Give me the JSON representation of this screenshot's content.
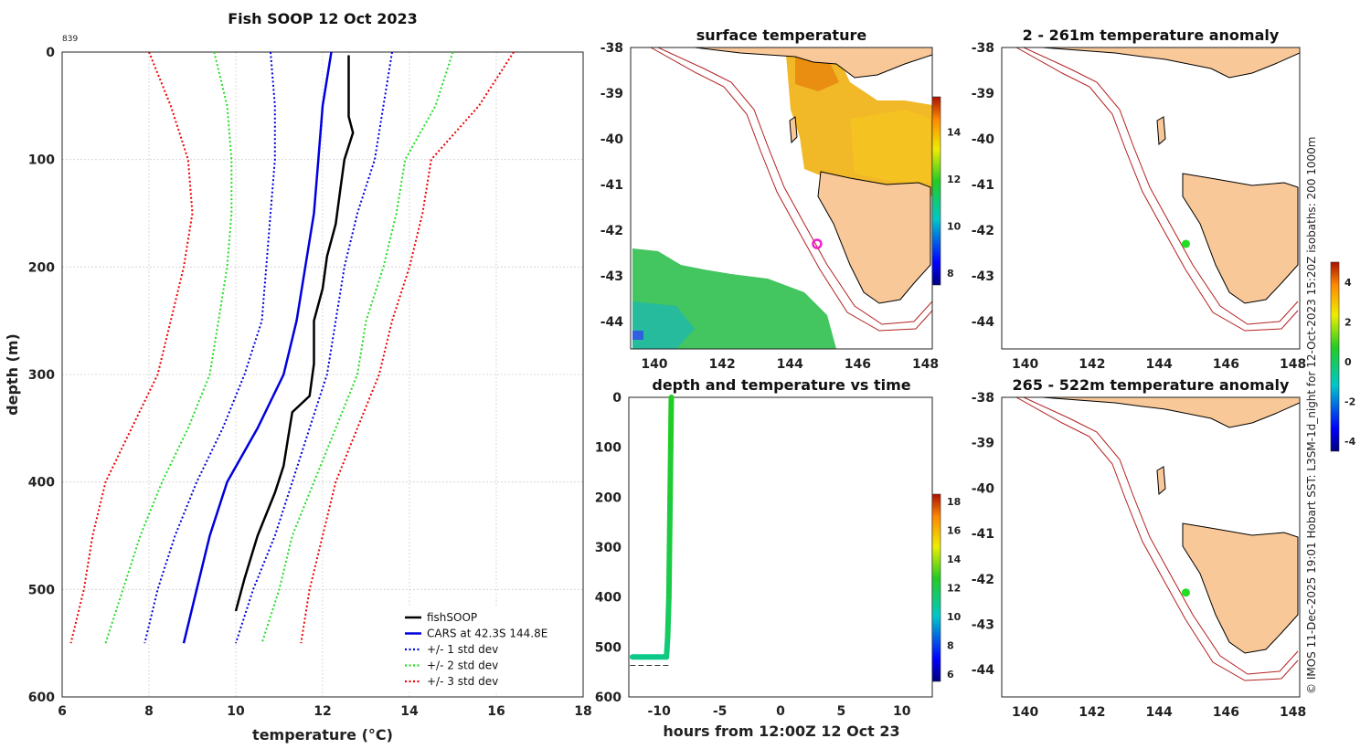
{
  "chart_data": [
    {
      "type": "line",
      "id": "profile",
      "title": "Fish SOOP 12 Oct 2023",
      "xlabel": "temperature (°C)",
      "ylabel": "depth (m)",
      "xlim": [
        6,
        18
      ],
      "ylim": [
        0,
        600
      ],
      "xticks": [
        6,
        8,
        10,
        12,
        14,
        16,
        18
      ],
      "yticks": [
        0,
        100,
        200,
        300,
        400,
        500,
        600
      ],
      "grid": true,
      "corner_label": "839",
      "depth": [
        0,
        50,
        100,
        150,
        200,
        250,
        300,
        350,
        400,
        450,
        500,
        550
      ],
      "series": [
        {
          "name": "fishSOOP",
          "color": "#000000",
          "style": "solid",
          "points": [
            [
              12.6,
              3
            ],
            [
              12.6,
              30
            ],
            [
              12.6,
              60
            ],
            [
              12.7,
              75
            ],
            [
              12.5,
              100
            ],
            [
              12.4,
              130
            ],
            [
              12.3,
              160
            ],
            [
              12.1,
              190
            ],
            [
              12.0,
              220
            ],
            [
              11.8,
              250
            ],
            [
              11.8,
              290
            ],
            [
              11.7,
              320
            ],
            [
              11.3,
              335
            ],
            [
              11.2,
              360
            ],
            [
              11.1,
              385
            ],
            [
              10.9,
              410
            ],
            [
              10.5,
              450
            ],
            [
              10.2,
              490
            ],
            [
              10.0,
              520
            ]
          ]
        },
        {
          "name": "CARS at 42.3S 144.8E",
          "color": "#0000dd",
          "style": "solid",
          "values": [
            12.2,
            12.0,
            11.9,
            11.8,
            11.6,
            11.4,
            11.1,
            10.5,
            9.8,
            9.4,
            9.1,
            8.8
          ]
        },
        {
          "name": "+/- 1 std dev",
          "color": "#0000dd",
          "style": "dotted",
          "values": [
            13.6,
            13.4,
            13.2,
            12.8,
            12.5,
            12.3,
            12.1,
            11.7,
            11.3,
            10.9,
            10.4,
            10.0
          ],
          "values_low": [
            10.8,
            10.9,
            10.9,
            10.8,
            10.7,
            10.6,
            10.2,
            9.7,
            9.1,
            8.6,
            8.2,
            7.9
          ]
        },
        {
          "name": "+/- 2 std dev",
          "color": "#22dd22",
          "style": "dotted",
          "values": [
            15.0,
            14.6,
            13.9,
            13.7,
            13.4,
            13.0,
            12.8,
            12.3,
            11.8,
            11.3,
            11.0,
            10.6
          ],
          "values_low": [
            9.5,
            9.8,
            9.9,
            9.9,
            9.8,
            9.6,
            9.4,
            8.9,
            8.3,
            7.8,
            7.4,
            7.0
          ]
        },
        {
          "name": "+/- 3 std dev",
          "color": "#ee0000",
          "style": "dotted",
          "values": [
            16.4,
            15.6,
            14.5,
            14.3,
            14.0,
            13.6,
            13.3,
            12.8,
            12.3,
            12.0,
            11.7,
            11.5
          ],
          "values_low": [
            8.0,
            8.5,
            8.9,
            9.0,
            8.8,
            8.5,
            8.2,
            7.6,
            7.0,
            6.7,
            6.5,
            6.2
          ]
        }
      ],
      "legend_location": "bottom-right"
    },
    {
      "type": "heatmap",
      "id": "sst_map",
      "title": "surface temperature",
      "xticks": [
        140,
        142,
        144,
        146,
        148
      ],
      "yticks": [
        -38,
        -39,
        -40,
        -41,
        -42,
        -43,
        -44
      ],
      "xlim": [
        139.3,
        148.2
      ],
      "ylim": [
        -44.6,
        -38
      ],
      "marker": {
        "lon": 144.8,
        "lat": -42.3,
        "color": "#ee22cc",
        "shape": "ring"
      },
      "colorbar": {
        "ticks": [
          8,
          10,
          12,
          14
        ],
        "range": [
          7.5,
          15.5
        ]
      }
    },
    {
      "type": "scatter",
      "id": "depth_time",
      "title": "depth and temperature vs time",
      "xlabel": "hours from 12:00Z 12 Oct 23",
      "xlim": [
        -12.5,
        12.5
      ],
      "ylim": [
        0,
        600
      ],
      "xticks": [
        -10,
        -5,
        0,
        5,
        10
      ],
      "yticks": [
        0,
        100,
        200,
        300,
        400,
        500,
        600
      ],
      "track": [
        [
          -12.2,
          520,
          11
        ],
        [
          -11.5,
          520,
          11
        ],
        [
          -10.5,
          520,
          11
        ],
        [
          -9.4,
          520,
          11
        ],
        [
          -9.3,
          480,
          11.5
        ],
        [
          -9.2,
          400,
          12
        ],
        [
          -9.15,
          300,
          12.1
        ],
        [
          -9.1,
          200,
          12.3
        ],
        [
          -9.05,
          100,
          12.5
        ],
        [
          -9.0,
          0,
          12.7
        ]
      ],
      "dashed_line_depth": 537,
      "colorbar": {
        "ticks": [
          6,
          8,
          10,
          12,
          14,
          16,
          18
        ],
        "range": [
          5.5,
          18.5
        ]
      }
    },
    {
      "type": "heatmap",
      "id": "anomaly_shallow",
      "title": "2 - 261m temperature anomaly",
      "xticks": [
        140,
        142,
        144,
        146,
        148
      ],
      "yticks": [
        -38,
        -39,
        -40,
        -41,
        -42,
        -43,
        -44
      ],
      "marker": {
        "lon": 144.8,
        "lat": -42.3,
        "color": "#22dd22"
      }
    },
    {
      "type": "heatmap",
      "id": "anomaly_deep",
      "title": "265 - 522m temperature anomaly",
      "xticks": [
        140,
        142,
        144,
        146,
        148
      ],
      "yticks": [
        -38,
        -39,
        -40,
        -41,
        -42,
        -43,
        -44
      ],
      "marker": {
        "lon": 144.8,
        "lat": -42.3,
        "color": "#22dd22"
      },
      "colorbar": {
        "ticks": [
          4,
          2,
          0,
          -2,
          -4
        ],
        "range": [
          -4.5,
          5
        ]
      }
    }
  ],
  "credit_text": "© IMOS 11-Dec-2025 19:01 Hobart SST: L3SM-1d_night for 12-Oct-2023 15:20Z isobaths: 200  1000m",
  "colors": {
    "land": "#f9c898",
    "isobath": "#b22020",
    "coast": "#000000"
  }
}
